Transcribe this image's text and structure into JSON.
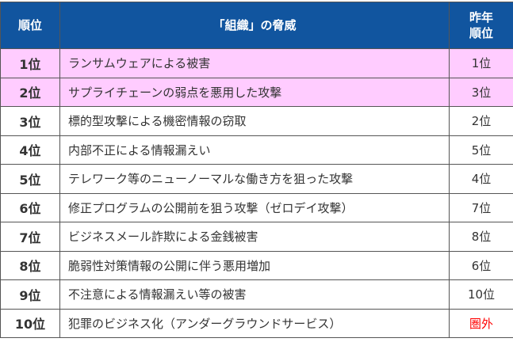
{
  "header": {
    "rank": "順位",
    "threat": "「組織」の脅威",
    "prev_line1": "昨年",
    "prev_line2": "順位"
  },
  "highlight_color": "#ffccff",
  "header_color": "#11559f",
  "rows": [
    {
      "rank": "1位",
      "threat": "ランサムウェアによる被害",
      "prev": "1位"
    },
    {
      "rank": "2位",
      "threat": "サプライチェーンの弱点を悪用した攻撃",
      "prev": "3位"
    },
    {
      "rank": "3位",
      "threat": "標的型攻撃による機密情報の窃取",
      "prev": "2位"
    },
    {
      "rank": "4位",
      "threat": "内部不正による情報漏えい",
      "prev": "5位"
    },
    {
      "rank": "5位",
      "threat": "テレワーク等のニューノーマルな働き方を狙った攻撃",
      "prev": "4位"
    },
    {
      "rank": "6位",
      "threat": "修正プログラムの公開前を狙う攻撃（ゼロデイ攻撃）",
      "prev": "7位"
    },
    {
      "rank": "7位",
      "threat": "ビジネスメール詐欺による金銭被害",
      "prev": "8位"
    },
    {
      "rank": "8位",
      "threat": "脆弱性対策情報の公開に伴う悪用増加",
      "prev": "6位"
    },
    {
      "rank": "9位",
      "threat": "不注意による情報漏えい等の被害",
      "prev": "10位"
    },
    {
      "rank": "10位",
      "threat": "犯罪のビジネス化（アンダーグラウンドサービス）",
      "prev": "圏外"
    }
  ]
}
